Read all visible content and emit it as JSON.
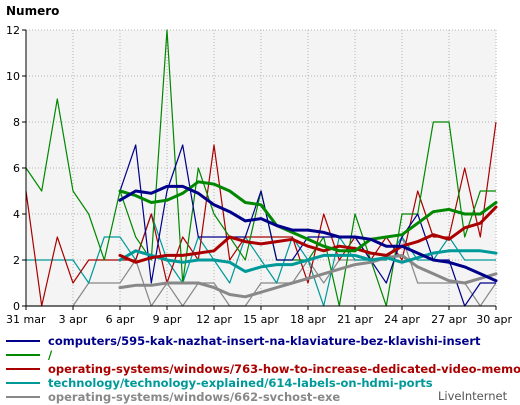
{
  "chart_data": {
    "type": "line",
    "ylabel": "Numero",
    "ylim": [
      0,
      12
    ],
    "yticks": [
      "0",
      "2",
      "4",
      "6",
      "8",
      "10",
      "12"
    ],
    "xticks": [
      "31 mar",
      "3 apr",
      "6 apr",
      "9 apr",
      "12 apr",
      "15 apr",
      "18 apr",
      "21 apr",
      "24 apr",
      "27 apr",
      "30 apr"
    ],
    "grid": true,
    "legend_position": "bottom",
    "series": [
      {
        "name": "computers/595-kak-nazhat-insert-na-klaviature-bez-klavishi-insert",
        "color": "#00008b",
        "raw": [
          null,
          null,
          null,
          null,
          null,
          null,
          5,
          7,
          1,
          5,
          7,
          3,
          3,
          3,
          3,
          5,
          2,
          2,
          3,
          3,
          3,
          3,
          2,
          1,
          3,
          4,
          2,
          2,
          0,
          1,
          1
        ],
        "avg": [
          null,
          null,
          null,
          null,
          null,
          null,
          4.6,
          5.0,
          4.9,
          5.2,
          5.2,
          4.9,
          4.4,
          4.1,
          3.7,
          3.8,
          3.5,
          3.3,
          3.3,
          3.2,
          3.0,
          3.0,
          2.9,
          2.6,
          2.6,
          2.3,
          2.0,
          1.9,
          1.7,
          1.4,
          1.1
        ]
      },
      {
        "name": "/",
        "color": "#008800",
        "raw": [
          6,
          5,
          9,
          5,
          4,
          2,
          5,
          3,
          2,
          12,
          1,
          6,
          4,
          3,
          2,
          5,
          2,
          2,
          2,
          3,
          0,
          4,
          2,
          0,
          4,
          4,
          8,
          8,
          3,
          5,
          5
        ],
        "avg": [
          null,
          null,
          null,
          null,
          null,
          null,
          5.0,
          4.8,
          4.5,
          4.6,
          4.9,
          5.4,
          5.3,
          5.0,
          4.5,
          4.4,
          3.5,
          3.2,
          2.9,
          2.6,
          2.4,
          2.4,
          2.9,
          3.0,
          3.1,
          3.6,
          4.1,
          4.2,
          4.0,
          4.0,
          4.5
        ]
      },
      {
        "name": "operating-systems/windows/763-how-to-increase-dedicated-video-memory",
        "color": "#aa0000",
        "raw": [
          5,
          0,
          3,
          1,
          2,
          2,
          2,
          2,
          4,
          1,
          3,
          2,
          7,
          2,
          3,
          3,
          3,
          3,
          1,
          4,
          2,
          3,
          2,
          3,
          2,
          5,
          3,
          3,
          6,
          3,
          8
        ],
        "avg": [
          null,
          null,
          null,
          null,
          null,
          null,
          2.2,
          1.9,
          2.1,
          2.2,
          2.2,
          2.3,
          2.4,
          3.0,
          2.8,
          2.7,
          2.8,
          2.9,
          2.6,
          2.4,
          2.6,
          2.5,
          2.3,
          2.2,
          2.6,
          2.8,
          3.1,
          2.9,
          3.4,
          3.6,
          4.3
        ]
      },
      {
        "name": "technology/technology-explained/614-labels-on-hdmi-ports",
        "color": "#009999",
        "raw": [
          2,
          2,
          2,
          2,
          1,
          3,
          3,
          2,
          4,
          2,
          1,
          3,
          2,
          1,
          3,
          2,
          1,
          3,
          2,
          0,
          3,
          2,
          2,
          2,
          3,
          2,
          2,
          3,
          2,
          2,
          2
        ],
        "avg": [
          null,
          null,
          null,
          null,
          null,
          null,
          2.0,
          2.4,
          2.2,
          2.0,
          1.9,
          2.0,
          2.0,
          1.9,
          1.5,
          1.7,
          1.8,
          1.8,
          2.0,
          2.2,
          2.2,
          2.2,
          2.0,
          2.1,
          1.9,
          2.1,
          2.3,
          2.4,
          2.4,
          2.4,
          2.3
        ]
      },
      {
        "name": "operating-systems/windows/662-svchost-exe",
        "color": "#888888",
        "raw": [
          0,
          0,
          0,
          0,
          1,
          1,
          1,
          2,
          0,
          1,
          0,
          1,
          1,
          0,
          0,
          1,
          1,
          1,
          2,
          1,
          2,
          2,
          2,
          2,
          3,
          1,
          1,
          1,
          1,
          0,
          1
        ],
        "avg": [
          null,
          null,
          null,
          null,
          null,
          null,
          0.8,
          0.9,
          0.9,
          1.0,
          1.0,
          1.0,
          0.8,
          0.5,
          0.4,
          0.6,
          0.8,
          1.0,
          1.2,
          1.4,
          1.6,
          1.8,
          1.9,
          2.1,
          2.2,
          1.7,
          1.4,
          1.1,
          1.0,
          1.2,
          1.4
        ]
      }
    ]
  },
  "credit": "LiveInternet"
}
